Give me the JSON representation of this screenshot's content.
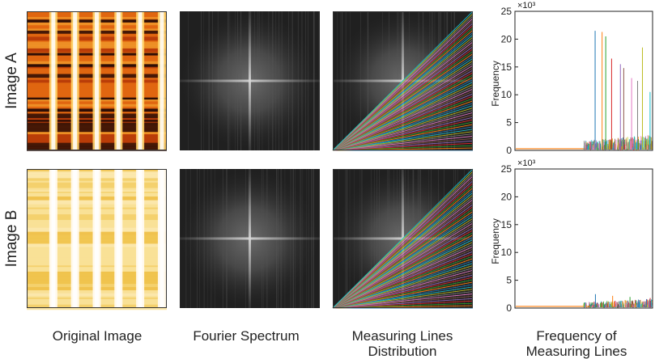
{
  "rows": [
    {
      "label": "Image A",
      "variant": "A"
    },
    {
      "label": "Image B",
      "variant": "B"
    }
  ],
  "columns": [
    {
      "lines": [
        "Original Image"
      ]
    },
    {
      "lines": [
        "Fourier Spectrum"
      ]
    },
    {
      "lines": [
        "Measuring Lines",
        "Distribution"
      ]
    },
    {
      "lines": [
        "Frequency of",
        "Measuring Lines"
      ]
    }
  ],
  "chart_data": [
    {
      "type": "line",
      "title": "",
      "xlabel": "",
      "ylabel": "Frequency",
      "y_multiplier_label": "×10³",
      "ylim": [
        0,
        25
      ],
      "yticks": [
        0,
        5,
        10,
        15,
        20,
        25
      ],
      "peak_values": [
        21.5,
        21.3,
        20.5,
        16.5,
        15.5,
        14.8,
        13.0,
        12.5,
        18.5,
        10.5
      ],
      "noise_level": 2.0
    },
    {
      "type": "line",
      "title": "",
      "xlabel": "",
      "ylabel": "Frequency",
      "y_multiplier_label": "×10³",
      "ylim": [
        0,
        25
      ],
      "yticks": [
        0,
        5,
        10,
        15,
        20,
        25
      ],
      "peak_values": [
        2.5,
        2.2,
        2.0,
        1.8
      ],
      "noise_level": 1.2
    }
  ],
  "colors": {
    "amber_dark": "#2e0e06",
    "amber_mid": "#d0500c",
    "amber_light": "#ffd36a",
    "yellow_base": "#f7db83",
    "spectrum_bg": "#202020",
    "line_palette": [
      "#1f77b4",
      "#ff7f0e",
      "#2ca02c",
      "#d62728",
      "#9467bd",
      "#8c564b",
      "#e377c2",
      "#7f7f7f",
      "#bcbd22",
      "#17becf"
    ]
  }
}
